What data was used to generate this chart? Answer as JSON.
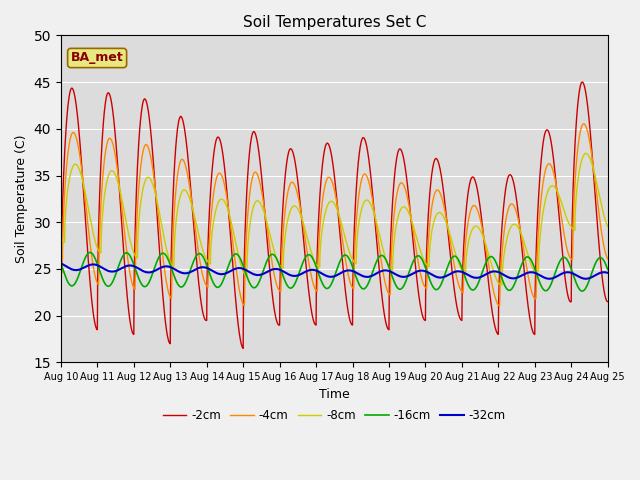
{
  "title": "Soil Temperatures Set C",
  "xlabel": "Time",
  "ylabel": "Soil Temperature (C)",
  "ylim": [
    15,
    50
  ],
  "xlim": [
    0,
    15
  ],
  "x_tick_labels": [
    "Aug 10",
    "Aug 11",
    "Aug 12",
    "Aug 13",
    "Aug 14",
    "Aug 15",
    "Aug 16",
    "Aug 17",
    "Aug 18",
    "Aug 19",
    "Aug 20",
    "Aug 21",
    "Aug 22",
    "Aug 23",
    "Aug 24",
    "Aug 25"
  ],
  "legend_labels": [
    "-2cm",
    "-4cm",
    "-8cm",
    "-16cm",
    "-32cm"
  ],
  "legend_colors": [
    "#cc0000",
    "#ff8800",
    "#cccc00",
    "#00aa00",
    "#0000cc"
  ],
  "fig_bg_color": "#f0f0f0",
  "plot_bg_color": "#dcdcdc",
  "annotation_text": "BA_met",
  "annotation_bg": "#e8e880",
  "annotation_border": "#996600",
  "annotation_text_color": "#880000",
  "peaks_2cm": [
    44.5,
    44.0,
    43.5,
    42.5,
    38.5,
    40.5,
    37.8,
    38.0,
    39.5,
    38.0,
    37.5,
    35.2,
    34.0,
    37.5,
    45.0
  ],
  "troughs_2cm": [
    20.0,
    18.5,
    18.0,
    17.0,
    19.5,
    16.5,
    19.0,
    19.0,
    19.0,
    18.5,
    19.5,
    19.5,
    18.0,
    18.0,
    21.5
  ],
  "center_32cm": [
    25.3,
    25.1,
    25.0,
    24.9,
    24.8,
    24.7,
    24.6,
    24.5,
    24.5,
    24.5,
    24.4,
    24.4,
    24.3,
    24.3,
    24.3
  ]
}
